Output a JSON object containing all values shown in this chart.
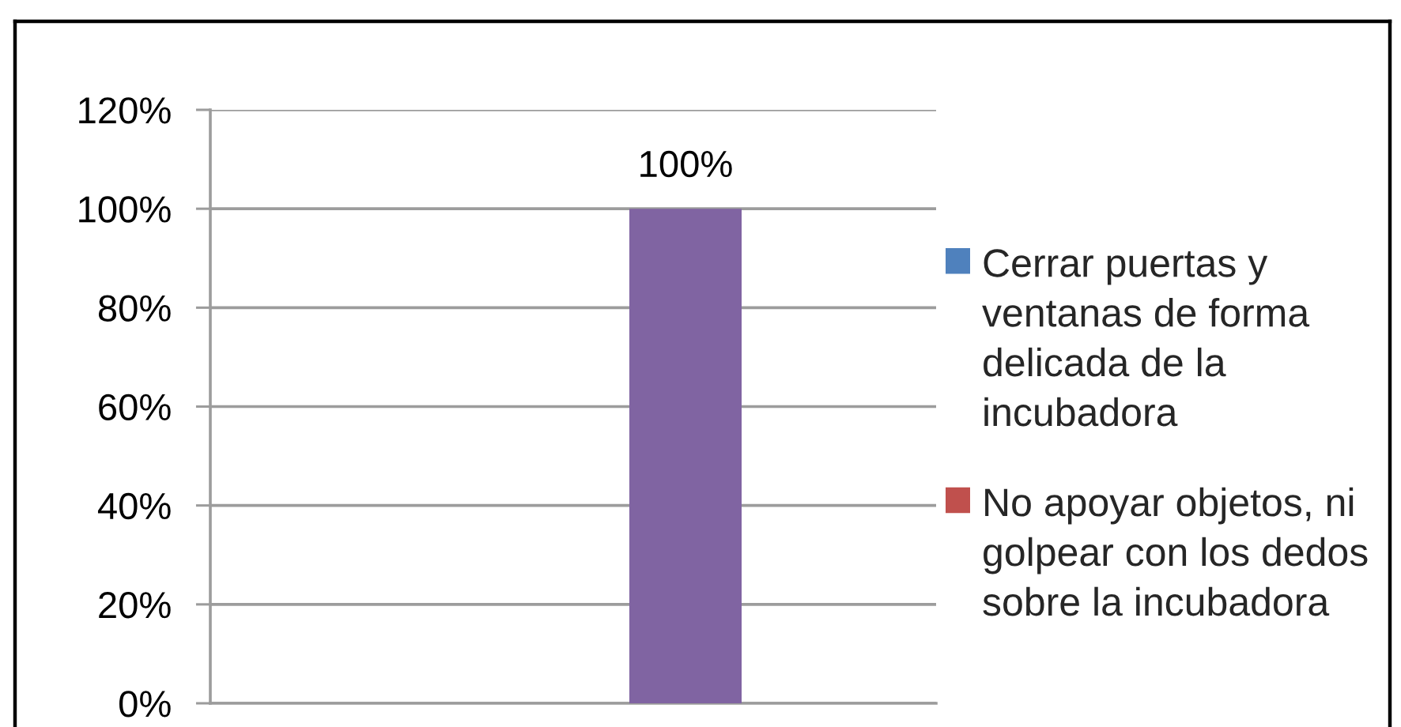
{
  "chart_data": {
    "type": "bar",
    "categories": [
      null
    ],
    "series": [
      {
        "name": "Cerrar puertas y ventanas de forma delicada de la incubadora",
        "color": "#4f81bd",
        "values": [
          0
        ],
        "value_labels": [
          null
        ]
      },
      {
        "name": "No apoyar objetos, ni golpear con los dedos sobre la incubadora",
        "color": "#c0504d",
        "values": [
          0
        ],
        "value_labels": [
          null
        ]
      },
      {
        "color": "#8064a2",
        "values": [
          100
        ],
        "value_labels": [
          "100%"
        ]
      }
    ],
    "ylim": [
      0,
      120
    ],
    "yticks": [
      {
        "value": 0,
        "label": "0%"
      },
      {
        "value": 20,
        "label": "20%"
      },
      {
        "value": 40,
        "label": "40%"
      },
      {
        "value": 60,
        "label": "60%"
      },
      {
        "value": 80,
        "label": "80%"
      },
      {
        "value": 100,
        "label": "100%"
      },
      {
        "value": 120,
        "label": "120%"
      }
    ],
    "grid": "y",
    "legend": "right"
  }
}
